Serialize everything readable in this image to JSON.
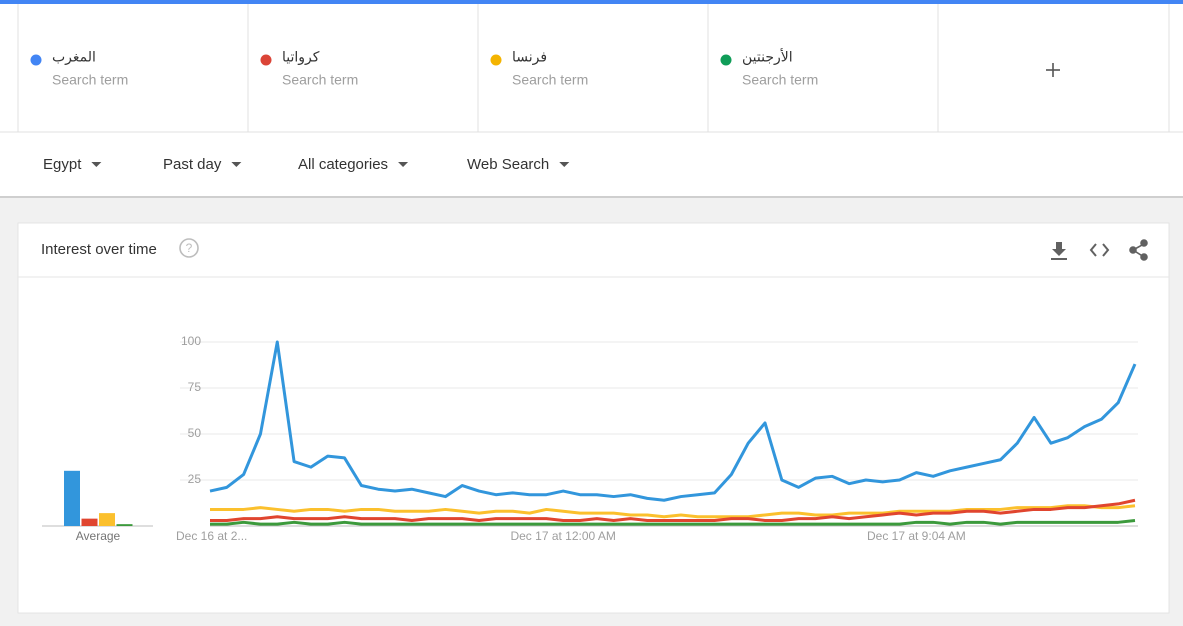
{
  "term_cards": [
    {
      "subtitle": "Search term"
    },
    {
      "subtitle": "Search term"
    },
    {
      "subtitle": "Search term"
    },
    {
      "subtitle": "Search term"
    }
  ],
  "filters": [
    "Egypt",
    "Past day",
    "All categories",
    "Web Search"
  ],
  "widget": {
    "title": "Interest over time"
  },
  "chart_data": {
    "type": "line",
    "average_label": "Average",
    "categories": [
      "Dec 16 at 2...",
      null,
      null,
      null,
      null,
      null,
      null,
      null,
      null,
      null,
      null,
      null,
      null,
      null,
      null,
      null,
      null,
      null,
      null,
      null,
      null,
      "Dec 17 at 12:00 AM",
      null,
      null,
      null,
      null,
      null,
      null,
      null,
      null,
      null,
      null,
      null,
      null,
      null,
      null,
      null,
      null,
      null,
      null,
      null,
      null,
      "Dec 17 at 9:04 AM",
      null,
      null,
      null,
      null,
      null,
      null,
      null,
      null,
      null,
      null,
      null,
      null,
      null
    ],
    "ylim": [
      0,
      100
    ],
    "yticks": [
      25,
      50,
      75,
      100
    ],
    "grid": true,
    "series": [
      {
        "name": "المغرب",
        "color": "#4285f4",
        "line_color": "#3296dc",
        "average": 30,
        "values": [
          19,
          21,
          28,
          50,
          100,
          35,
          32,
          38,
          37,
          22,
          20,
          19,
          20,
          18,
          16,
          22,
          19,
          17,
          18,
          17,
          17,
          19,
          17,
          17,
          16,
          17,
          15,
          14,
          16,
          17,
          18,
          28,
          45,
          56,
          25,
          21,
          26,
          27,
          23,
          25,
          24,
          25,
          29,
          27,
          30,
          32,
          34,
          36,
          45,
          59,
          45,
          48,
          54,
          58,
          67,
          88
        ]
      },
      {
        "name": "كرواتيا",
        "color": "#db4437",
        "line_color": "#e0452f",
        "average": 4,
        "values": [
          3,
          3,
          4,
          4,
          5,
          4,
          4,
          4,
          5,
          4,
          4,
          4,
          3,
          4,
          4,
          4,
          3,
          4,
          4,
          4,
          4,
          3,
          3,
          4,
          3,
          4,
          3,
          3,
          3,
          3,
          3,
          4,
          4,
          3,
          3,
          4,
          4,
          5,
          4,
          5,
          6,
          7,
          6,
          7,
          7,
          8,
          8,
          7,
          8,
          9,
          9,
          10,
          10,
          11,
          12,
          14
        ]
      },
      {
        "name": "فرنسا",
        "color": "#f4b400",
        "line_color": "#fbc02d",
        "average": 7,
        "values": [
          9,
          9,
          9,
          10,
          9,
          8,
          9,
          9,
          8,
          9,
          9,
          8,
          8,
          8,
          9,
          8,
          7,
          8,
          8,
          7,
          9,
          8,
          7,
          7,
          7,
          6,
          6,
          5,
          6,
          5,
          5,
          5,
          5,
          6,
          7,
          7,
          6,
          6,
          7,
          7,
          7,
          8,
          8,
          8,
          8,
          9,
          9,
          9,
          10,
          10,
          10,
          11,
          11,
          10,
          10,
          11
        ]
      },
      {
        "name": "الأرجنتين",
        "color": "#0f9d58",
        "line_color": "#3c9a3c",
        "average": 1,
        "values": [
          1,
          1,
          2,
          1,
          1,
          2,
          1,
          1,
          2,
          1,
          1,
          1,
          1,
          1,
          1,
          1,
          1,
          1,
          1,
          1,
          1,
          1,
          1,
          1,
          1,
          1,
          1,
          1,
          1,
          1,
          1,
          1,
          1,
          1,
          1,
          1,
          1,
          1,
          1,
          1,
          1,
          1,
          2,
          2,
          1,
          2,
          2,
          1,
          2,
          2,
          2,
          2,
          2,
          2,
          2,
          3
        ]
      }
    ]
  }
}
